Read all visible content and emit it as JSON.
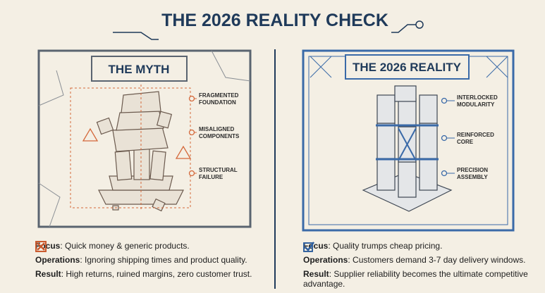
{
  "title": "THE 2026 REALITY CHECK",
  "myth": {
    "heading": "THE MYTH",
    "labels": [
      [
        "FRAGMENTED",
        "FOUNDATION"
      ],
      [
        "MISALIGNED",
        "COMPONENTS"
      ],
      [
        "STRUCTURAL",
        "FAILURE"
      ]
    ],
    "points": [
      {
        "key": "Focus",
        "text": ": Quick money & generic products."
      },
      {
        "key": "Operations",
        "text": ": Ignoring shipping times and product quality."
      },
      {
        "key": "Result",
        "text": ": High returns, ruined margins, zero customer trust."
      }
    ]
  },
  "reality": {
    "heading": "THE 2026 REALITY",
    "labels": [
      [
        "INTERLOCKED",
        "MODULARITY"
      ],
      [
        "REINFORCED",
        "CORE"
      ],
      [
        "PRECISION",
        "ASSEMBLY"
      ]
    ],
    "points": [
      {
        "key": "Focus",
        "text": ": Quality trumps cheap pricing."
      },
      {
        "key": "Operations",
        "text": ": Customers demand 3-7 day delivery windows."
      },
      {
        "key": "Result",
        "text": ": Supplier reliability becomes the ultimate competitive advantage."
      }
    ]
  }
}
